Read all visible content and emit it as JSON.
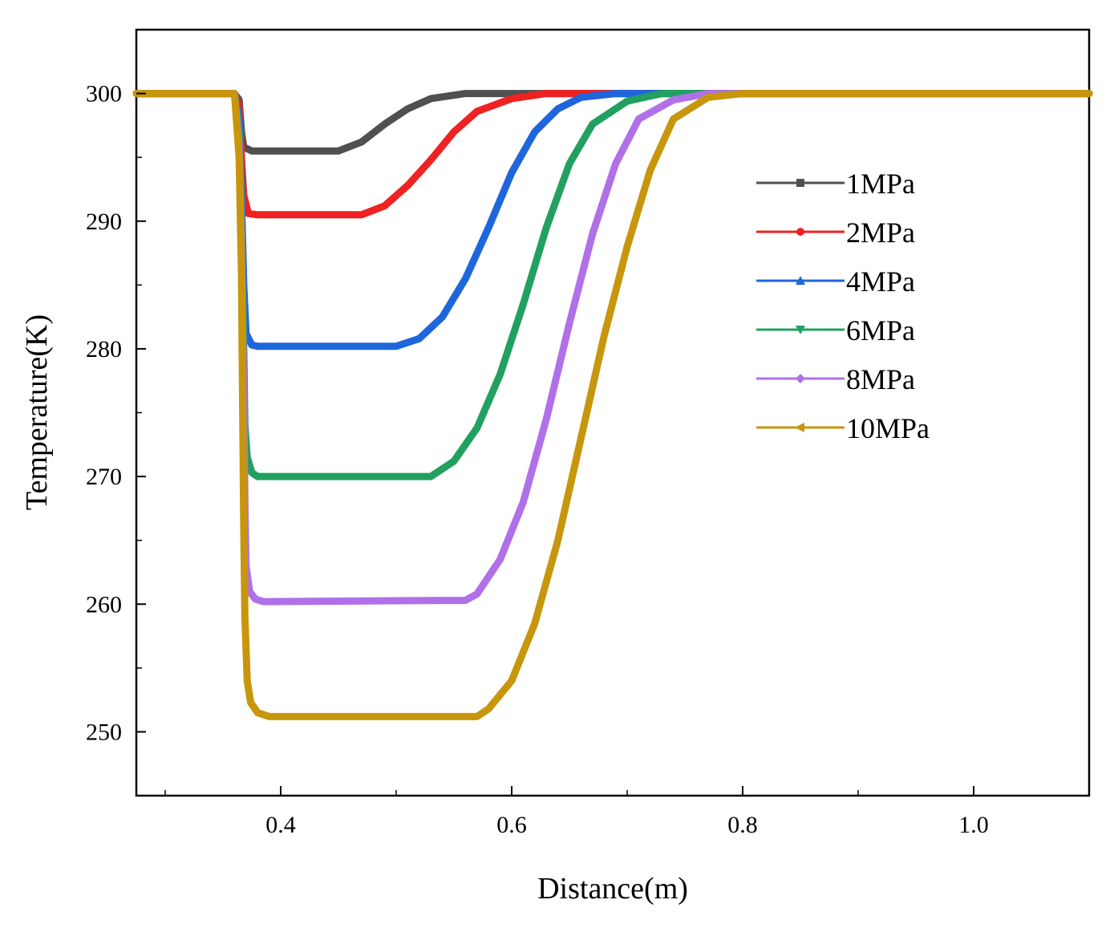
{
  "chart_data": {
    "type": "line",
    "title": "",
    "xlabel": "Distance(m)",
    "ylabel": "Temperature(K)",
    "xlim": [
      0.275,
      1.1
    ],
    "ylim": [
      245,
      305
    ],
    "x_ticks": [
      0.4,
      0.6,
      0.8,
      1.0
    ],
    "x_tick_labels": [
      "0.4",
      "0.6",
      "0.8",
      "1.0"
    ],
    "y_ticks": [
      250,
      260,
      270,
      280,
      290,
      300
    ],
    "y_tick_labels": [
      "250",
      "260",
      "270",
      "280",
      "290",
      "300"
    ],
    "grid": false,
    "legend_position": "right",
    "series": [
      {
        "name": "1MPa",
        "color": "#505050",
        "marker": "square",
        "points": [
          [
            0.275,
            300
          ],
          [
            0.36,
            300
          ],
          [
            0.364,
            299.5
          ],
          [
            0.366,
            297
          ],
          [
            0.368,
            295.8
          ],
          [
            0.375,
            295.5
          ],
          [
            0.45,
            295.5
          ],
          [
            0.47,
            296.2
          ],
          [
            0.49,
            297.6
          ],
          [
            0.51,
            298.8
          ],
          [
            0.53,
            299.6
          ],
          [
            0.56,
            300
          ],
          [
            0.6,
            300
          ],
          [
            1.1,
            300
          ]
        ]
      },
      {
        "name": "2MPa",
        "color": "#ee2222",
        "marker": "circle",
        "points": [
          [
            0.275,
            300
          ],
          [
            0.36,
            300
          ],
          [
            0.364,
            299
          ],
          [
            0.366,
            295
          ],
          [
            0.368,
            292
          ],
          [
            0.372,
            290.6
          ],
          [
            0.38,
            290.5
          ],
          [
            0.47,
            290.5
          ],
          [
            0.49,
            291.2
          ],
          [
            0.51,
            292.8
          ],
          [
            0.53,
            294.8
          ],
          [
            0.55,
            297
          ],
          [
            0.57,
            298.6
          ],
          [
            0.6,
            299.6
          ],
          [
            0.63,
            300
          ],
          [
            0.66,
            300
          ],
          [
            1.1,
            300
          ]
        ]
      },
      {
        "name": "4MPa",
        "color": "#1f66dd",
        "marker": "triangle-up",
        "points": [
          [
            0.275,
            300
          ],
          [
            0.36,
            300
          ],
          [
            0.364,
            298
          ],
          [
            0.366,
            292
          ],
          [
            0.368,
            285
          ],
          [
            0.37,
            281.2
          ],
          [
            0.375,
            280.3
          ],
          [
            0.38,
            280.2
          ],
          [
            0.5,
            280.2
          ],
          [
            0.52,
            280.8
          ],
          [
            0.54,
            282.5
          ],
          [
            0.56,
            285.5
          ],
          [
            0.58,
            289.5
          ],
          [
            0.6,
            293.8
          ],
          [
            0.62,
            297
          ],
          [
            0.64,
            298.8
          ],
          [
            0.66,
            299.7
          ],
          [
            0.69,
            300
          ],
          [
            1.1,
            300
          ]
        ]
      },
      {
        "name": "6MPa",
        "color": "#22a060",
        "marker": "triangle-down",
        "points": [
          [
            0.275,
            300
          ],
          [
            0.36,
            300
          ],
          [
            0.364,
            297
          ],
          [
            0.366,
            290
          ],
          [
            0.368,
            280
          ],
          [
            0.369,
            274
          ],
          [
            0.371,
            271.5
          ],
          [
            0.375,
            270.3
          ],
          [
            0.38,
            270
          ],
          [
            0.53,
            270
          ],
          [
            0.55,
            271.2
          ],
          [
            0.57,
            273.8
          ],
          [
            0.59,
            278
          ],
          [
            0.61,
            283.5
          ],
          [
            0.63,
            289.5
          ],
          [
            0.65,
            294.5
          ],
          [
            0.67,
            297.6
          ],
          [
            0.7,
            299.4
          ],
          [
            0.73,
            300
          ],
          [
            1.1,
            300
          ]
        ]
      },
      {
        "name": "8MPa",
        "color": "#b070e8",
        "marker": "diamond",
        "points": [
          [
            0.275,
            300
          ],
          [
            0.36,
            300
          ],
          [
            0.364,
            296
          ],
          [
            0.366,
            288
          ],
          [
            0.368,
            276
          ],
          [
            0.369,
            268
          ],
          [
            0.37,
            263
          ],
          [
            0.373,
            261
          ],
          [
            0.378,
            260.4
          ],
          [
            0.385,
            260.2
          ],
          [
            0.56,
            260.3
          ],
          [
            0.57,
            260.8
          ],
          [
            0.59,
            263.5
          ],
          [
            0.61,
            268
          ],
          [
            0.63,
            274.5
          ],
          [
            0.65,
            282
          ],
          [
            0.67,
            289
          ],
          [
            0.69,
            294.5
          ],
          [
            0.71,
            298
          ],
          [
            0.74,
            299.5
          ],
          [
            0.77,
            300
          ],
          [
            1.1,
            300
          ]
        ]
      },
      {
        "name": "10MPa",
        "color": "#c8960c",
        "marker": "triangle-left",
        "points": [
          [
            0.275,
            300
          ],
          [
            0.36,
            300
          ],
          [
            0.364,
            295
          ],
          [
            0.366,
            286
          ],
          [
            0.367,
            276
          ],
          [
            0.368,
            266
          ],
          [
            0.369,
            259
          ],
          [
            0.371,
            254
          ],
          [
            0.374,
            252.3
          ],
          [
            0.38,
            251.5
          ],
          [
            0.39,
            251.2
          ],
          [
            0.57,
            251.2
          ],
          [
            0.58,
            251.8
          ],
          [
            0.6,
            254
          ],
          [
            0.62,
            258.5
          ],
          [
            0.64,
            265
          ],
          [
            0.66,
            273
          ],
          [
            0.68,
            281
          ],
          [
            0.7,
            288
          ],
          [
            0.72,
            294
          ],
          [
            0.74,
            298
          ],
          [
            0.77,
            299.7
          ],
          [
            0.8,
            300
          ],
          [
            1.1,
            300
          ]
        ]
      }
    ]
  }
}
